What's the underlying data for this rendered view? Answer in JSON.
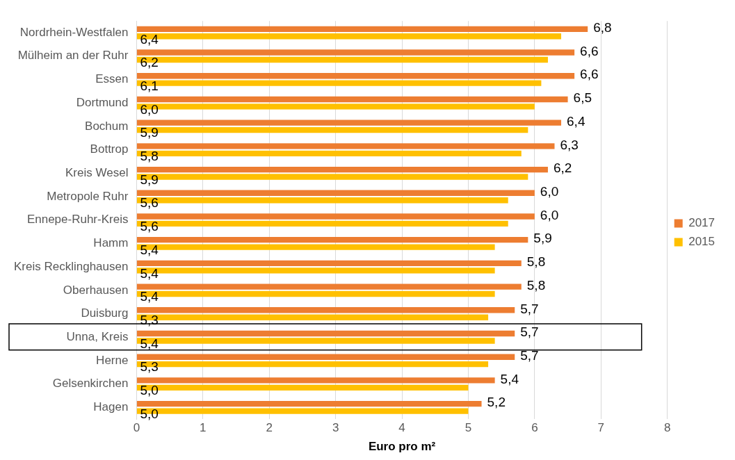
{
  "chart_data": {
    "type": "bar",
    "orientation": "horizontal",
    "xlabel": "Euro pro m²",
    "categories": [
      "Nordrhein-Westfalen",
      "Mülheim an der Ruhr",
      "Essen",
      "Dortmund",
      "Bochum",
      "Bottrop",
      "Kreis Wesel",
      "Metropole Ruhr",
      "Ennepe-Ruhr-Kreis",
      "Hamm",
      "Kreis Recklinghausen",
      "Oberhausen",
      "Duisburg",
      "Unna, Kreis",
      "Herne",
      "Gelsenkirchen",
      "Hagen"
    ],
    "series": [
      {
        "name": "2017",
        "color": "#ed7d31",
        "values": [
          6.8,
          6.6,
          6.6,
          6.5,
          6.4,
          6.3,
          6.2,
          6.0,
          6.0,
          5.9,
          5.8,
          5.8,
          5.7,
          5.7,
          5.7,
          5.4,
          5.2
        ],
        "value_labels": [
          "6,8",
          "6,6",
          "6,6",
          "6,5",
          "6,4",
          "6,3",
          "6,2",
          "6,0",
          "6,0",
          "5,9",
          "5,8",
          "5,8",
          "5,7",
          "5,7",
          "5,7",
          "5,4",
          "5,2"
        ]
      },
      {
        "name": "2015",
        "color": "#ffc000",
        "values": [
          6.4,
          6.2,
          6.1,
          6.0,
          5.9,
          5.8,
          5.9,
          5.6,
          5.6,
          5.4,
          5.4,
          5.4,
          5.3,
          5.4,
          5.3,
          5.0,
          5.0
        ],
        "value_labels": [
          "6,4",
          "6,2",
          "6,1",
          "6,0",
          "5,9",
          "5,8",
          "5,9",
          "5,6",
          "5,6",
          "5,4",
          "5,4",
          "5,4",
          "5,3",
          "5,4",
          "5,3",
          "5,0",
          "5,0"
        ]
      }
    ],
    "xlim": [
      0,
      8
    ],
    "xticks": [
      0,
      1,
      2,
      3,
      4,
      5,
      6,
      7,
      8
    ],
    "grid": "x",
    "legend": "right"
  }
}
